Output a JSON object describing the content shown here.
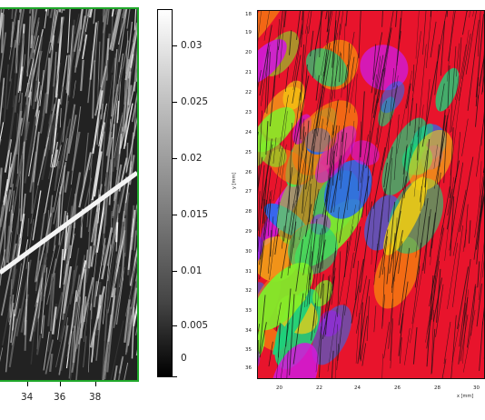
{
  "left_panel": {
    "frame_color": "#1fa82a",
    "x_ticks": [
      "34",
      "36",
      "38"
    ]
  },
  "colorbar": {
    "ticks": [
      "0.03",
      "0.025",
      "0.02",
      "0.015",
      "0.01",
      "0.005",
      "0"
    ],
    "min": 0,
    "max": 0.033
  },
  "right_panel": {
    "y_ticks": [
      "18",
      "19",
      "20",
      "21",
      "22",
      "23",
      "24",
      "25",
      "26",
      "27",
      "28",
      "29",
      "30",
      "31",
      "32",
      "33",
      "34",
      "35",
      "36"
    ],
    "x_ticks": [
      "20",
      "22",
      "24",
      "26",
      "28",
      "30"
    ],
    "y_axis_label": "y [mm]",
    "x_axis_label": "x [mm]",
    "palette": [
      "#e8142c",
      "#d01ad8",
      "#9a22f0",
      "#f47a10",
      "#f5d010",
      "#2a6df0",
      "#1fd07a",
      "#7ef02a"
    ]
  }
}
